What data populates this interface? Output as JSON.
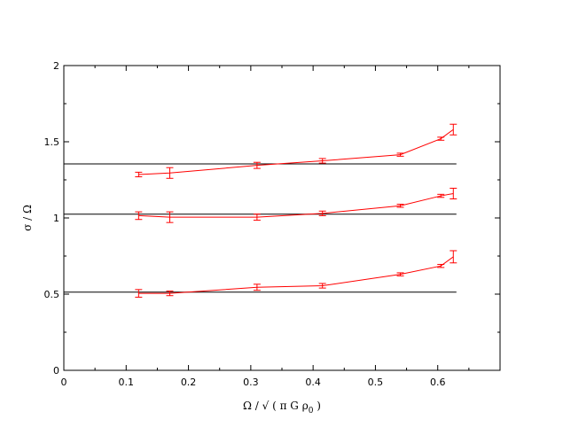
{
  "chart_data": {
    "type": "line",
    "xlabel_parts": {
      "main": "Ω / √ ( π G ρ",
      "sub": "0",
      "end": " )"
    },
    "ylabel": "σ / Ω",
    "xlim": [
      0,
      0.7
    ],
    "ylim": [
      0,
      2
    ],
    "x_ticks": [
      0,
      0.1,
      0.2,
      0.3,
      0.4,
      0.5,
      0.6
    ],
    "x_tick_labels": [
      "0",
      "0.1",
      "0.2",
      "0.3",
      "0.4",
      "0.5",
      "0.6"
    ],
    "y_ticks": [
      0,
      0.5,
      1,
      1.5,
      2
    ],
    "y_tick_labels": [
      "0",
      "0.5",
      "1",
      "1.5",
      "2"
    ],
    "grid": false,
    "reference_lines": [
      {
        "y": 1.355,
        "x_range": [
          0,
          0.63
        ],
        "color": "#000000"
      },
      {
        "y": 1.025,
        "x_range": [
          0,
          0.63
        ],
        "color": "#000000"
      },
      {
        "y": 0.513,
        "x_range": [
          0,
          0.63
        ],
        "color": "#000000"
      }
    ],
    "series": [
      {
        "color": "#ff0000",
        "x": [
          0.12,
          0.17,
          0.31,
          0.415,
          0.54,
          0.605,
          0.625
        ],
        "y": [
          1.285,
          1.295,
          1.345,
          1.375,
          1.415,
          1.52,
          1.58
        ],
        "err": [
          0.015,
          0.035,
          0.02,
          0.015,
          0.01,
          0.01,
          0.035
        ]
      },
      {
        "color": "#ff0000",
        "x": [
          0.12,
          0.17,
          0.31,
          0.415,
          0.54,
          0.605,
          0.625
        ],
        "y": [
          1.015,
          1.005,
          1.005,
          1.03,
          1.08,
          1.145,
          1.16
        ],
        "err": [
          0.025,
          0.035,
          0.02,
          0.015,
          0.01,
          0.01,
          0.035
        ]
      },
      {
        "color": "#ff0000",
        "x": [
          0.12,
          0.17,
          0.31,
          0.415,
          0.54,
          0.605,
          0.625
        ],
        "y": [
          0.505,
          0.505,
          0.545,
          0.555,
          0.63,
          0.685,
          0.745
        ],
        "err": [
          0.025,
          0.015,
          0.02,
          0.015,
          0.01,
          0.01,
          0.04
        ]
      }
    ]
  }
}
